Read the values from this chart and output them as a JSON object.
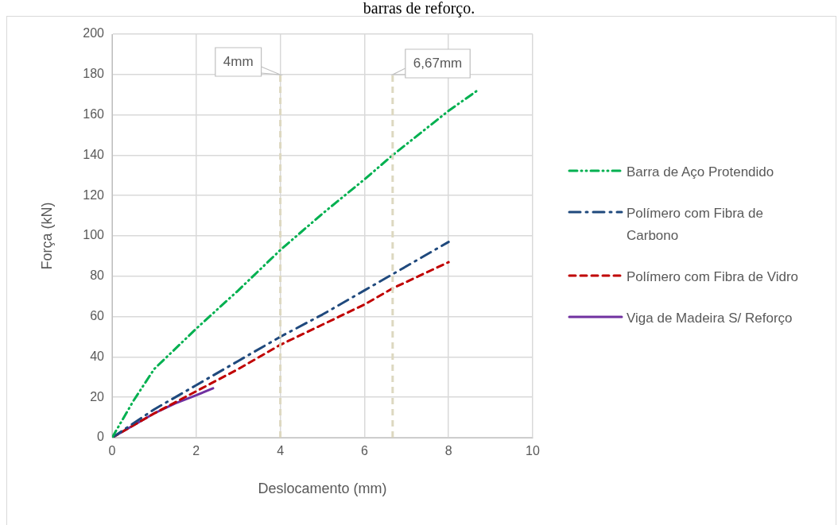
{
  "chart_data": {
    "type": "line",
    "title": "barras de reforço.",
    "xlabel": "Deslocamento (mm)",
    "ylabel": "Força (kN)",
    "xlim": [
      0,
      10
    ],
    "xticks": [
      0,
      2,
      4,
      6,
      8,
      10
    ],
    "ylim": [
      0,
      200
    ],
    "yticks": [
      0,
      20,
      40,
      60,
      80,
      100,
      120,
      140,
      160,
      180,
      200
    ],
    "grid": true,
    "legend": "right",
    "marker": "none",
    "series": [
      {
        "name": "Barra de Aço Protendido",
        "color": "#00b050",
        "line_style": "dashdotdot",
        "x": [
          0,
          0.5,
          1,
          2,
          3,
          4,
          5,
          6,
          6.67,
          8,
          8.68
        ],
        "values": [
          0,
          18,
          34,
          54,
          73,
          93,
          111,
          128,
          140,
          162,
          172
        ]
      },
      {
        "name": "Polímero com Fibra de Carbono",
        "color": "#1f497d",
        "line_style": "dashdot",
        "x": [
          0,
          1,
          2,
          3,
          4,
          5,
          6,
          6.67,
          8
        ],
        "values": [
          0,
          14,
          26,
          38,
          50,
          61,
          73,
          81,
          97
        ]
      },
      {
        "name": "Polímero com Fibra de Vidro",
        "color": "#c00000",
        "line_style": "dashed",
        "x": [
          0,
          1,
          2,
          3,
          4,
          5,
          6,
          6.67,
          8
        ],
        "values": [
          0,
          12,
          23,
          34,
          46,
          56,
          66,
          74,
          87
        ]
      },
      {
        "name": "Viga de Madeira S/ Reforço",
        "color": "#7030a0",
        "line_style": "solid",
        "x": [
          0,
          0.5,
          1,
          1.5,
          2,
          2.4
        ],
        "values": [
          0,
          6,
          12,
          17,
          21,
          24.5
        ]
      }
    ],
    "ref_lines": [
      {
        "axis": "x",
        "value": 4,
        "label": "4mm",
        "color": "#ddd8c0",
        "line_style": "dashed"
      },
      {
        "axis": "x",
        "value": 6.67,
        "label": "6,67mm",
        "color": "#ddd8c0",
        "line_style": "dashed"
      }
    ]
  }
}
